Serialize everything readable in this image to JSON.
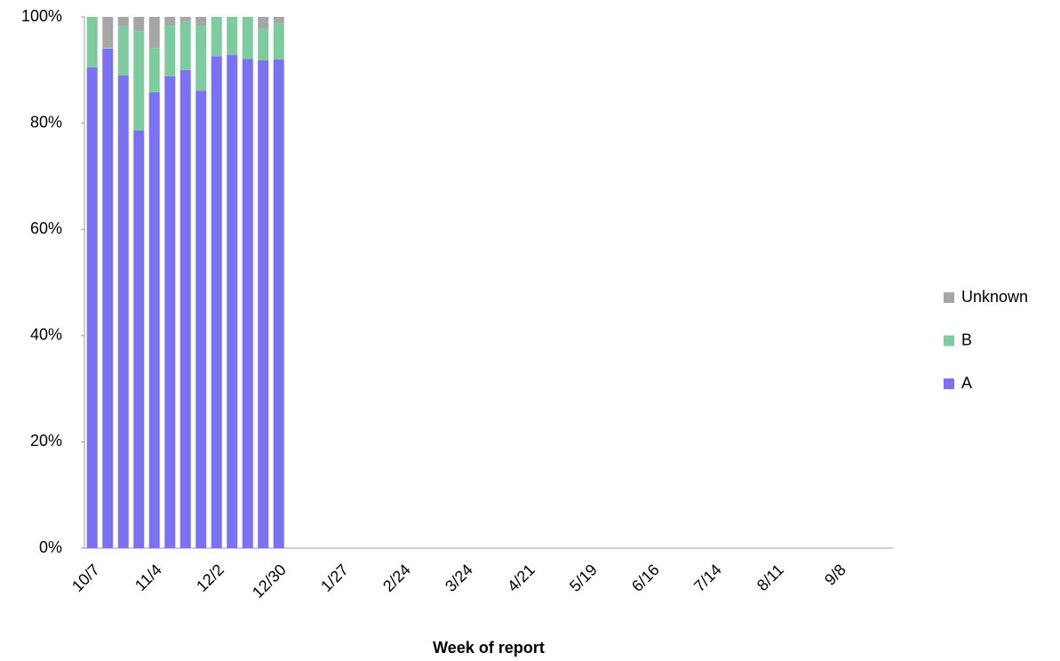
{
  "chart_data": {
    "type": "stacked_bar",
    "x_label": "Week of report",
    "categories": [
      "10/7",
      null,
      null,
      null,
      "11/4",
      null,
      null,
      null,
      "12/2",
      null,
      null,
      null,
      "12/30",
      null,
      null,
      null,
      "1/27",
      null,
      null,
      null,
      "2/24",
      null,
      null,
      null,
      "3/24",
      null,
      null,
      null,
      "4/21",
      null,
      null,
      null,
      "5/19",
      null,
      null,
      null,
      "6/16",
      null,
      null,
      null,
      "7/14",
      null,
      null,
      null,
      "8/11",
      null,
      null,
      null,
      "9/8",
      null,
      null,
      null
    ],
    "series": [
      {
        "name": "A",
        "color": "#7b71f3",
        "values": [
          90.5,
          94.0,
          89.0,
          78.6,
          85.8,
          88.8,
          90.0,
          86.1,
          92.6,
          92.8,
          92.1,
          91.8,
          92.0,
          null,
          null,
          null,
          null,
          null,
          null,
          null,
          null,
          null,
          null,
          null,
          null,
          null,
          null,
          null,
          null,
          null,
          null,
          null,
          null,
          null,
          null,
          null,
          null,
          null,
          null,
          null,
          null,
          null,
          null,
          null,
          null,
          null,
          null,
          null,
          null,
          null,
          null,
          null
        ]
      },
      {
        "name": "B",
        "color": "#7dcb9f",
        "values": [
          9.5,
          0.2,
          9.2,
          18.7,
          8.3,
          9.5,
          9.2,
          12.2,
          7.4,
          7.2,
          7.9,
          6.0,
          6.8,
          null,
          null,
          null,
          null,
          null,
          null,
          null,
          null,
          null,
          null,
          null,
          null,
          null,
          null,
          null,
          null,
          null,
          null,
          null,
          null,
          null,
          null,
          null,
          null,
          null,
          null,
          null,
          null,
          null,
          null,
          null,
          null,
          null,
          null,
          null,
          null,
          null,
          null,
          null
        ]
      },
      {
        "name": "Unknown",
        "color": "#a6a6a6",
        "values": [
          0,
          5.8,
          1.8,
          2.7,
          5.9,
          1.7,
          0.8,
          1.7,
          0,
          0,
          0,
          2.2,
          1.2,
          null,
          null,
          null,
          null,
          null,
          null,
          null,
          null,
          null,
          null,
          null,
          null,
          null,
          null,
          null,
          null,
          null,
          null,
          null,
          null,
          null,
          null,
          null,
          null,
          null,
          null,
          null,
          null,
          null,
          null,
          null,
          null,
          null,
          null,
          null,
          null,
          null,
          null,
          null
        ]
      }
    ],
    "ylim": [
      0,
      100
    ],
    "yticks": [
      {
        "value": 0,
        "label": "0%"
      },
      {
        "value": 20,
        "label": "20%"
      },
      {
        "value": 40,
        "label": "40%"
      },
      {
        "value": 60,
        "label": "60%"
      },
      {
        "value": 80,
        "label": "80%"
      },
      {
        "value": 100,
        "label": "100%"
      }
    ],
    "legend": "right"
  }
}
